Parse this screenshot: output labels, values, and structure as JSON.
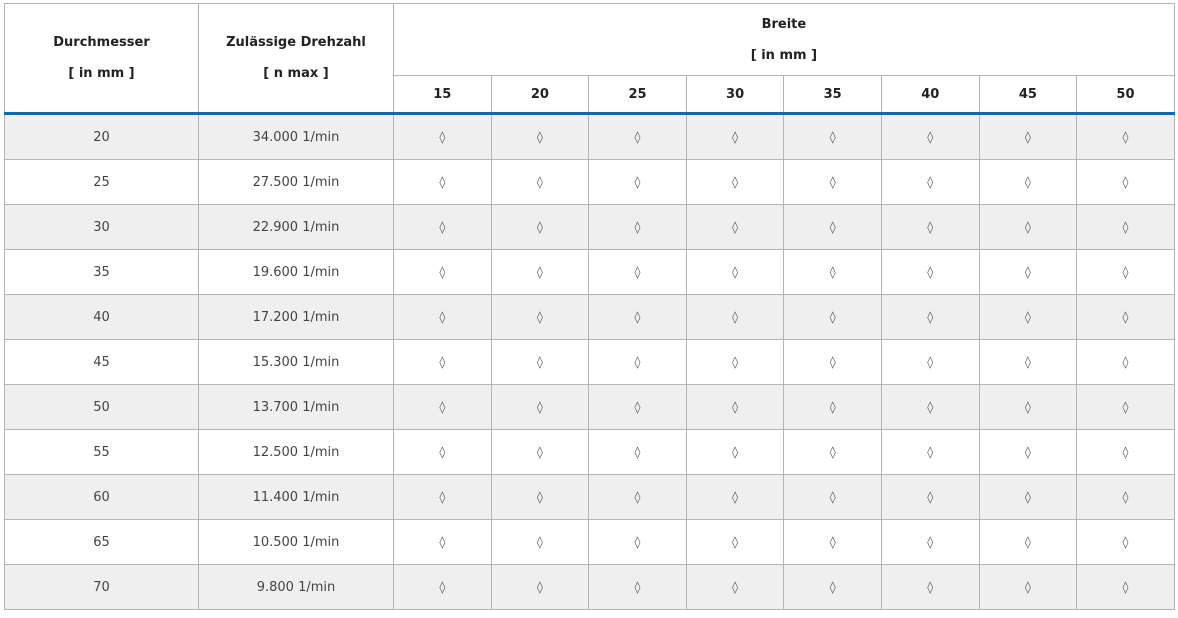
{
  "table": {
    "headers": {
      "diameter": {
        "label": "Durchmesser",
        "unit": "[ in mm ]"
      },
      "speed": {
        "label": "Zulässige Drehzahl",
        "unit": "[ n max ]"
      },
      "width": {
        "label": "Breite",
        "unit": "[ in mm ]"
      },
      "widths": [
        "15",
        "20",
        "25",
        "30",
        "35",
        "40",
        "45",
        "50"
      ]
    },
    "rows": [
      {
        "diameter": "20",
        "speed": "34.000 1/min",
        "cells": [
          "◊",
          "◊",
          "◊",
          "◊",
          "◊",
          "◊",
          "◊",
          "◊"
        ]
      },
      {
        "diameter": "25",
        "speed": "27.500 1/min",
        "cells": [
          "◊",
          "◊",
          "◊",
          "◊",
          "◊",
          "◊",
          "◊",
          "◊"
        ]
      },
      {
        "diameter": "30",
        "speed": "22.900 1/min",
        "cells": [
          "◊",
          "◊",
          "◊",
          "◊",
          "◊",
          "◊",
          "◊",
          "◊"
        ]
      },
      {
        "diameter": "35",
        "speed": "19.600 1/min",
        "cells": [
          "◊",
          "◊",
          "◊",
          "◊",
          "◊",
          "◊",
          "◊",
          "◊"
        ]
      },
      {
        "diameter": "40",
        "speed": "17.200 1/min",
        "cells": [
          "◊",
          "◊",
          "◊",
          "◊",
          "◊",
          "◊",
          "◊",
          "◊"
        ]
      },
      {
        "diameter": "45",
        "speed": "15.300 1/min",
        "cells": [
          "◊",
          "◊",
          "◊",
          "◊",
          "◊",
          "◊",
          "◊",
          "◊"
        ]
      },
      {
        "diameter": "50",
        "speed": "13.700 1/min",
        "cells": [
          "◊",
          "◊",
          "◊",
          "◊",
          "◊",
          "◊",
          "◊",
          "◊"
        ]
      },
      {
        "diameter": "55",
        "speed": "12.500 1/min",
        "cells": [
          "◊",
          "◊",
          "◊",
          "◊",
          "◊",
          "◊",
          "◊",
          "◊"
        ]
      },
      {
        "diameter": "60",
        "speed": "11.400 1/min",
        "cells": [
          "◊",
          "◊",
          "◊",
          "◊",
          "◊",
          "◊",
          "◊",
          "◊"
        ]
      },
      {
        "diameter": "65",
        "speed": "10.500 1/min",
        "cells": [
          "◊",
          "◊",
          "◊",
          "◊",
          "◊",
          "◊",
          "◊",
          "◊"
        ]
      },
      {
        "diameter": "70",
        "speed": "9.800 1/min",
        "cells": [
          "◊",
          "◊",
          "◊",
          "◊",
          "◊",
          "◊",
          "◊",
          "◊"
        ]
      }
    ],
    "colors": {
      "accent": "#0a69b0",
      "stripe": "#efefef",
      "border": "#b4b4b4"
    }
  }
}
